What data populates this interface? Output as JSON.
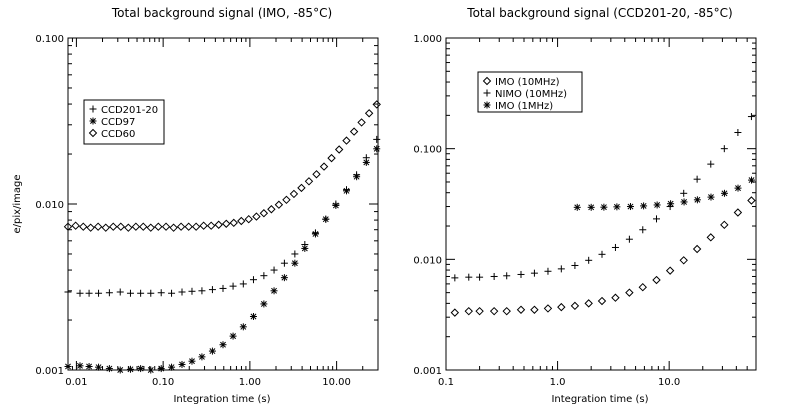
{
  "chart_data": [
    {
      "type": "scatter",
      "title": "Total background signal (IMO, -85°C)",
      "xlabel": "Integration time (s)",
      "ylabel": "e/pix/image",
      "xscale": "log",
      "yscale": "log",
      "xlim": [
        0.008,
        30
      ],
      "ylim": [
        0.001,
        0.1
      ],
      "xticks": [
        0.01,
        0.1,
        1,
        10
      ],
      "xtick_labels": [
        "0.01",
        "0.10",
        "1.00",
        "10.00"
      ],
      "yticks": [
        0.001,
        0.01,
        0.1
      ],
      "ytick_labels": [
        "0.001",
        "0.010",
        "0.100"
      ],
      "legend_position": "upper-left",
      "series": [
        {
          "name": "CCD201-20",
          "marker": "plus",
          "x": [
            0.008,
            0.011,
            0.014,
            0.018,
            0.024,
            0.032,
            0.042,
            0.055,
            0.072,
            0.095,
            0.125,
            0.165,
            0.215,
            0.28,
            0.37,
            0.49,
            0.64,
            0.84,
            1.1,
            1.45,
            1.9,
            2.5,
            3.3,
            4.3,
            5.7,
            7.5,
            9.8,
            13,
            17,
            22,
            29
          ],
          "y": [
            0.00295,
            0.0029,
            0.0029,
            0.0029,
            0.00292,
            0.00295,
            0.0029,
            0.0029,
            0.0029,
            0.00292,
            0.0029,
            0.00295,
            0.00298,
            0.003,
            0.00305,
            0.0031,
            0.0032,
            0.0033,
            0.0035,
            0.0037,
            0.004,
            0.0044,
            0.005,
            0.0057,
            0.0067,
            0.0081,
            0.01,
            0.0122,
            0.015,
            0.019,
            0.0245
          ]
        },
        {
          "name": "CCD97",
          "marker": "star",
          "x": [
            0.008,
            0.011,
            0.014,
            0.018,
            0.024,
            0.032,
            0.042,
            0.055,
            0.072,
            0.095,
            0.125,
            0.165,
            0.215,
            0.28,
            0.37,
            0.49,
            0.64,
            0.84,
            1.1,
            1.45,
            1.9,
            2.5,
            3.3,
            4.3,
            5.7,
            7.5,
            9.8,
            13,
            17,
            22,
            29
          ],
          "y": [
            0.00105,
            0.00106,
            0.00105,
            0.00104,
            0.00102,
            0.001,
            0.00101,
            0.00102,
            0.001,
            0.00102,
            0.00104,
            0.00108,
            0.00113,
            0.0012,
            0.0013,
            0.00142,
            0.0016,
            0.00182,
            0.0021,
            0.0025,
            0.003,
            0.0036,
            0.0044,
            0.0054,
            0.0066,
            0.0081,
            0.0098,
            0.012,
            0.0146,
            0.0178,
            0.0215
          ]
        },
        {
          "name": "CCD60",
          "marker": "diamond",
          "x": [
            0.008,
            0.0098,
            0.012,
            0.0146,
            0.0178,
            0.0218,
            0.0266,
            0.0325,
            0.0397,
            0.0485,
            0.059,
            0.072,
            0.088,
            0.108,
            0.132,
            0.161,
            0.197,
            0.24,
            0.293,
            0.358,
            0.437,
            0.534,
            0.652,
            0.796,
            0.97,
            1.19,
            1.45,
            1.77,
            2.16,
            2.64,
            3.22,
            3.93,
            4.8,
            5.86,
            7.16,
            8.74,
            10.7,
            13.0,
            15.9,
            19.4,
            23.7,
            29.0
          ],
          "y": [
            0.0073,
            0.0074,
            0.0073,
            0.0072,
            0.0073,
            0.0072,
            0.0073,
            0.0073,
            0.0072,
            0.0073,
            0.0073,
            0.0072,
            0.0073,
            0.0073,
            0.0072,
            0.0073,
            0.0073,
            0.0073,
            0.0074,
            0.0074,
            0.0075,
            0.0076,
            0.0077,
            0.0079,
            0.0081,
            0.0084,
            0.0088,
            0.0093,
            0.0099,
            0.0106,
            0.0115,
            0.0125,
            0.0137,
            0.0151,
            0.0168,
            0.0189,
            0.0213,
            0.0241,
            0.0273,
            0.031,
            0.0352,
            0.0398
          ]
        }
      ]
    },
    {
      "type": "scatter",
      "title": "Total background signal (CCD201-20, -85°C)",
      "xlabel": "Integration time (s)",
      "ylabel": "",
      "xscale": "log",
      "yscale": "log",
      "xlim": [
        0.1,
        60
      ],
      "ylim": [
        0.001,
        1.0
      ],
      "xticks": [
        0.1,
        1,
        10
      ],
      "xtick_labels": [
        "0.1",
        "1.0",
        "10.0"
      ],
      "yticks": [
        0.001,
        0.01,
        0.1,
        1.0
      ],
      "ytick_labels": [
        "0.001",
        "0.010",
        "0.100",
        "1.000"
      ],
      "legend_position": "upper-left",
      "series": [
        {
          "name": "IMO (10MHz)",
          "marker": "diamond",
          "x": [
            0.12,
            0.16,
            0.2,
            0.27,
            0.35,
            0.47,
            0.62,
            0.82,
            1.08,
            1.43,
            1.9,
            2.5,
            3.3,
            4.4,
            5.8,
            7.7,
            10.2,
            13.5,
            17.8,
            23.6,
            31.2,
            41.3,
            54.6
          ],
          "y": [
            0.0033,
            0.0034,
            0.0034,
            0.0034,
            0.0034,
            0.0035,
            0.0035,
            0.0036,
            0.0037,
            0.0038,
            0.004,
            0.0042,
            0.0045,
            0.005,
            0.0056,
            0.0065,
            0.0079,
            0.0098,
            0.0124,
            0.0158,
            0.0205,
            0.0265,
            0.034
          ]
        },
        {
          "name": "NIMO (10MHz)",
          "marker": "plus",
          "x": [
            0.12,
            0.16,
            0.2,
            0.27,
            0.35,
            0.47,
            0.62,
            0.82,
            1.08,
            1.43,
            1.9,
            2.5,
            3.3,
            4.4,
            5.8,
            7.7,
            10.2,
            13.5,
            17.8,
            23.6,
            31.2,
            41.3,
            54.6
          ],
          "y": [
            0.0068,
            0.0069,
            0.0069,
            0.007,
            0.0071,
            0.0073,
            0.0075,
            0.0078,
            0.0082,
            0.0088,
            0.0098,
            0.0111,
            0.0128,
            0.0152,
            0.0185,
            0.0232,
            0.03,
            0.0395,
            0.053,
            0.0725,
            0.1,
            0.14,
            0.195
          ]
        },
        {
          "name": "IMO (1MHz)",
          "marker": "star",
          "x": [
            1.5,
            2.0,
            2.6,
            3.4,
            4.5,
            5.9,
            7.8,
            10.3,
            13.6,
            17.9,
            23.7,
            31.3,
            41.4,
            54.7
          ],
          "y": [
            0.0295,
            0.0295,
            0.0296,
            0.0298,
            0.03,
            0.0304,
            0.031,
            0.0318,
            0.033,
            0.0345,
            0.0365,
            0.0395,
            0.044,
            0.052
          ]
        }
      ]
    }
  ]
}
